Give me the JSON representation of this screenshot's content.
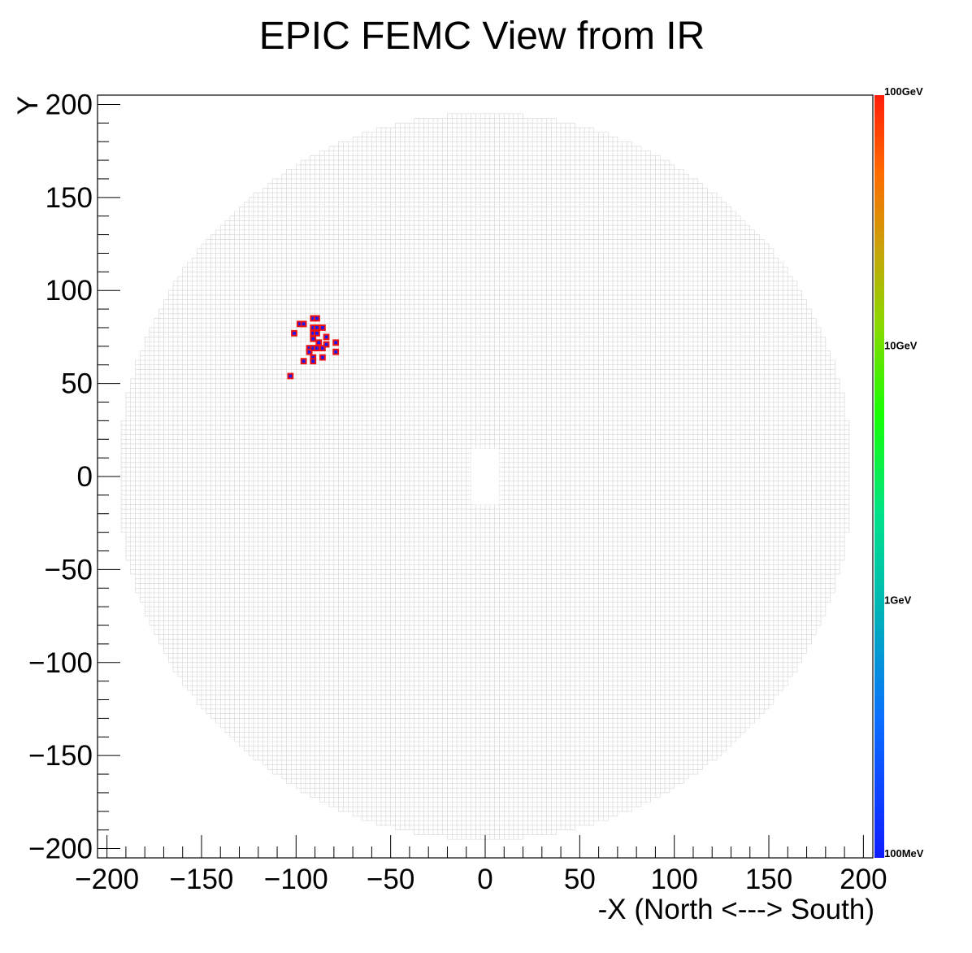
{
  "chart_data": {
    "type": "heatmap",
    "title": "EPIC FEMC View from IR",
    "xlabel": "-X (North <---> South)",
    "ylabel": "Y",
    "xlim": [
      -205,
      205
    ],
    "ylim": [
      -205,
      205
    ],
    "x_ticks": [
      -200,
      -150,
      -100,
      -50,
      0,
      50,
      100,
      150,
      200
    ],
    "y_ticks": [
      -200,
      -150,
      -100,
      -50,
      0,
      50,
      100,
      150,
      200
    ],
    "x_tick_labels": [
      "−200",
      "−150",
      "−100",
      "−50",
      "0",
      "50",
      "100",
      "150",
      "200"
    ],
    "y_tick_labels": [
      "−200",
      "−150",
      "−100",
      "−50",
      "0",
      "50",
      "100",
      "150",
      "200"
    ],
    "color_scale": "log",
    "colorbar_labels": [
      "100GeV",
      "10GeV",
      "1GeV",
      "100MeV"
    ],
    "colorbar_range": [
      "100MeV",
      "100GeV"
    ],
    "colors": {
      "cell_grid": "#d4d4d4",
      "hit_fill": "#1a1aee",
      "hit_border": "#ee1111",
      "axis": "#000000",
      "beam_hole": "#ffffff"
    },
    "detector": {
      "cell_size": 2.5,
      "outer_radius": 195,
      "beam_hole": {
        "x": [
          -7.5,
          7.5
        ],
        "y": [
          -15,
          15
        ]
      }
    },
    "hits": [
      {
        "x": -103,
        "y": 54
      },
      {
        "x": -101,
        "y": 77
      },
      {
        "x": -98,
        "y": 82
      },
      {
        "x": -96,
        "y": 82
      },
      {
        "x": -96,
        "y": 62
      },
      {
        "x": -93,
        "y": 69
      },
      {
        "x": -93,
        "y": 67
      },
      {
        "x": -91,
        "y": 85
      },
      {
        "x": -91,
        "y": 80
      },
      {
        "x": -91,
        "y": 77
      },
      {
        "x": -91,
        "y": 74
      },
      {
        "x": -91,
        "y": 69
      },
      {
        "x": -91,
        "y": 64
      },
      {
        "x": -91,
        "y": 62
      },
      {
        "x": -89,
        "y": 85
      },
      {
        "x": -89,
        "y": 80
      },
      {
        "x": -89,
        "y": 77
      },
      {
        "x": -89,
        "y": 69
      },
      {
        "x": -88,
        "y": 72
      },
      {
        "x": -86,
        "y": 80
      },
      {
        "x": -86,
        "y": 69
      },
      {
        "x": -86,
        "y": 64
      },
      {
        "x": -84,
        "y": 75
      },
      {
        "x": -84,
        "y": 71
      },
      {
        "x": -79,
        "y": 72
      },
      {
        "x": -79,
        "y": 67
      }
    ]
  }
}
